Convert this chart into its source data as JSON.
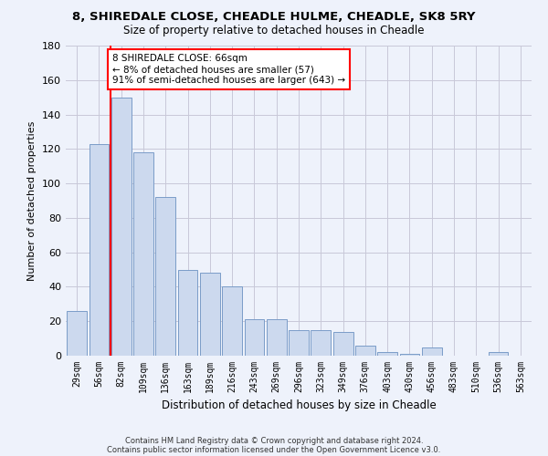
{
  "title1": "8, SHIREDALE CLOSE, CHEADLE HULME, CHEADLE, SK8 5RY",
  "title2": "Size of property relative to detached houses in Cheadle",
  "xlabel": "Distribution of detached houses by size in Cheadle",
  "ylabel": "Number of detached properties",
  "categories": [
    "29sqm",
    "56sqm",
    "82sqm",
    "109sqm",
    "136sqm",
    "163sqm",
    "189sqm",
    "216sqm",
    "243sqm",
    "269sqm",
    "296sqm",
    "323sqm",
    "349sqm",
    "376sqm",
    "403sqm",
    "430sqm",
    "456sqm",
    "483sqm",
    "510sqm",
    "536sqm",
    "563sqm"
  ],
  "values": [
    26,
    123,
    150,
    118,
    92,
    50,
    48,
    40,
    21,
    21,
    15,
    15,
    14,
    6,
    2,
    1,
    5,
    0,
    0,
    2,
    0
  ],
  "bar_color": "#ccd9ee",
  "bar_edge_color": "#7a9cc8",
  "grid_color": "#c8c8d8",
  "vline_color": "red",
  "annotation_line1": "8 SHIREDALE CLOSE: 66sqm",
  "annotation_line2": "← 8% of detached houses are smaller (57)",
  "annotation_line3": "91% of semi-detached houses are larger (643) →",
  "annotation_box_color": "white",
  "annotation_box_edge": "red",
  "ylim": [
    0,
    180
  ],
  "yticks": [
    0,
    20,
    40,
    60,
    80,
    100,
    120,
    140,
    160,
    180
  ],
  "footer1": "Contains HM Land Registry data © Crown copyright and database right 2024.",
  "footer2": "Contains public sector information licensed under the Open Government Licence v3.0.",
  "bg_color": "#eef2fb",
  "title1_fontsize": 9.5,
  "title2_fontsize": 8.5
}
